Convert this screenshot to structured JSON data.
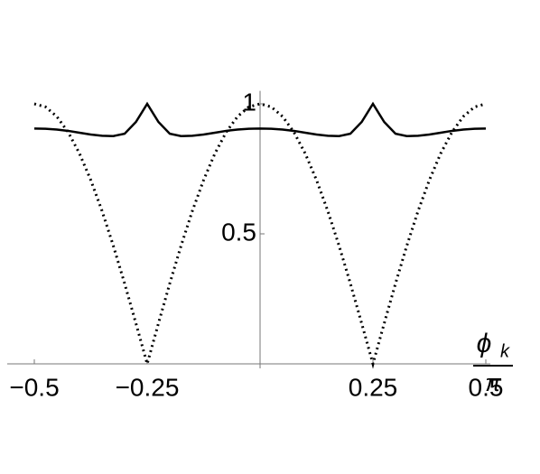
{
  "chart_data": {
    "type": "line",
    "x": [
      -0.5,
      -0.475,
      -0.45,
      -0.425,
      -0.4,
      -0.375,
      -0.35,
      -0.325,
      -0.3,
      -0.275,
      -0.25,
      -0.225,
      -0.2,
      -0.175,
      -0.15,
      -0.125,
      -0.1,
      -0.075,
      -0.05,
      -0.025,
      0,
      0.025,
      0.05,
      0.075,
      0.1,
      0.125,
      0.15,
      0.175,
      0.2,
      0.225,
      0.25,
      0.275,
      0.3,
      0.325,
      0.35,
      0.375,
      0.4,
      0.425,
      0.45,
      0.475,
      0.5
    ],
    "series": [
      {
        "color": "#000000",
        "dash": "dotted",
        "values": [
          1,
          0.988,
          0.951,
          0.891,
          0.809,
          0.707,
          0.588,
          0.454,
          0.309,
          0.156,
          0,
          0.156,
          0.309,
          0.454,
          0.588,
          0.707,
          0.809,
          0.891,
          0.951,
          0.988,
          1,
          0.988,
          0.951,
          0.891,
          0.809,
          0.707,
          0.588,
          0.454,
          0.309,
          0.156,
          0,
          0.156,
          0.309,
          0.454,
          0.588,
          0.707,
          0.809,
          0.891,
          0.951,
          0.988,
          1
        ]
      },
      {
        "color": "#000000",
        "dash": "solid",
        "values": [
          0.905,
          0.904,
          0.901,
          0.896,
          0.889,
          0.882,
          0.877,
          0.876,
          0.885,
          0.93,
          1,
          0.93,
          0.885,
          0.876,
          0.877,
          0.882,
          0.889,
          0.896,
          0.901,
          0.904,
          0.905,
          0.904,
          0.901,
          0.896,
          0.889,
          0.882,
          0.877,
          0.876,
          0.885,
          0.93,
          1,
          0.93,
          0.885,
          0.876,
          0.877,
          0.882,
          0.889,
          0.896,
          0.901,
          0.904,
          0.905
        ]
      }
    ],
    "xlim": [
      -0.5,
      0.5
    ],
    "ylim": [
      0,
      1.05
    ],
    "xticks": [
      {
        "value": -0.5,
        "label": "−0.5"
      },
      {
        "value": -0.25,
        "label": "−0.25"
      },
      0.25,
      0.5
    ],
    "yticks": [
      0.5,
      1
    ],
    "x_label": {
      "symbol": "ϕ",
      "subscript": "k",
      "denominator": "π"
    }
  }
}
